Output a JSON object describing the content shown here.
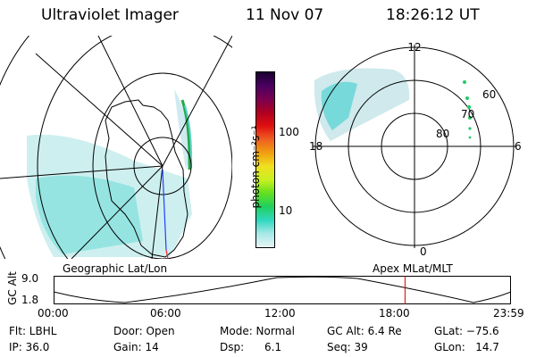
{
  "header": {
    "instrument": "Ultraviolet Imager",
    "date": "11 Nov 07",
    "time": "18:26:12 UT"
  },
  "geo_panel": {
    "label": "Geographic Lat/Lon"
  },
  "colorbar": {
    "unit_label": "photon cm⁻²s⁻¹",
    "ticks": [
      "100",
      "10"
    ],
    "colors": [
      "#1a0030",
      "#4a0060",
      "#7a0050",
      "#b00020",
      "#e01010",
      "#f06020",
      "#f0a010",
      "#f0e020",
      "#c8f020",
      "#60e020",
      "#20d060",
      "#30d8c0",
      "#a8e8e8",
      "#e8f4f4"
    ]
  },
  "polar_panel": {
    "label": "Apex MLat/MLT",
    "mlt_labels": {
      "top": "12",
      "left": "18",
      "right": "6",
      "bottom": "0"
    },
    "lat_labels": [
      "60",
      "70",
      "80"
    ]
  },
  "altitude_plot": {
    "ylabel": "GC Alt",
    "yticks": [
      "9.0",
      "1.8"
    ],
    "xticks": [
      "00:00",
      "06:00",
      "12:00",
      "18:00",
      "23:59"
    ],
    "current_time_hours": 18.44
  },
  "status": {
    "flt": "Flt: LBHL",
    "ip": "IP: 36.0",
    "door": "Door: Open",
    "gain": "Gain: 14",
    "mode": "Mode: Normal",
    "dsp": "Dsp:      6.1",
    "gcalt": "GC Alt: 6.4 Re",
    "seq": "Seq: 39",
    "glat": "GLat: −75.6",
    "glon": "GLon:   14.7"
  }
}
